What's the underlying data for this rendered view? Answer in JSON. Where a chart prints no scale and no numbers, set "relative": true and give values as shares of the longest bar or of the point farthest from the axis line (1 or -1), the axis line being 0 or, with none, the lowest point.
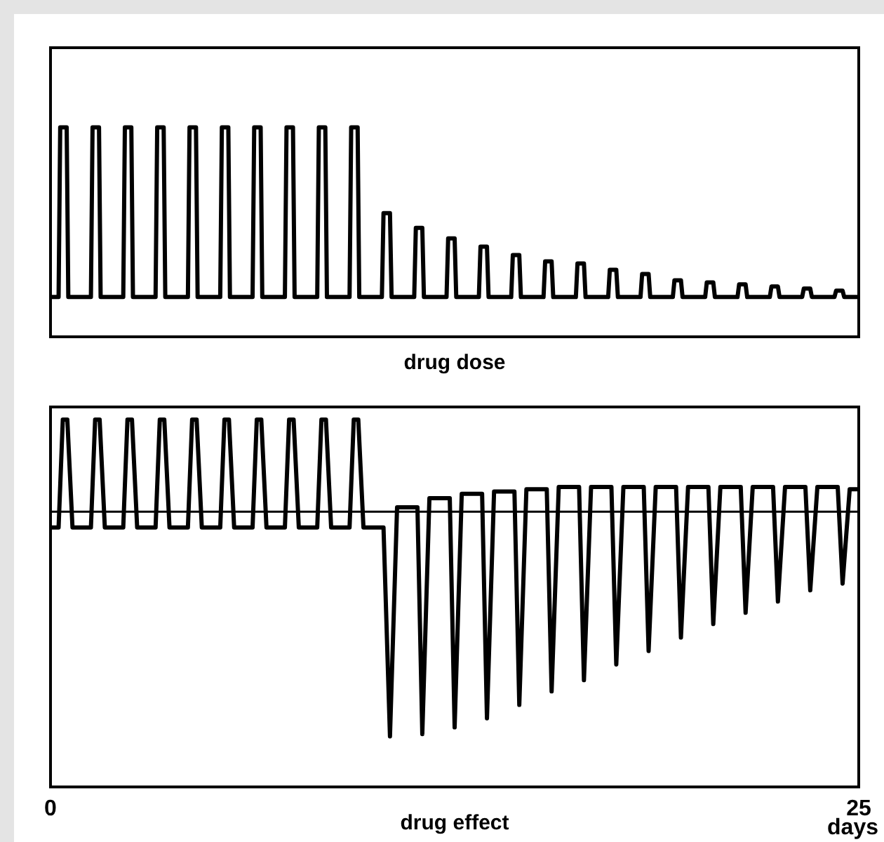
{
  "chart_data": [
    {
      "type": "line",
      "xlabel": "drug dose",
      "xlim": [
        0,
        25
      ],
      "tick_labels": false,
      "relative": true,
      "series": [
        {
          "color": "#000000",
          "x": [
            0,
            0.25,
            0.3,
            0.5,
            0.55,
            1.25,
            1.3,
            1.5,
            1.55,
            2.25,
            2.3,
            2.5,
            2.55,
            3.25,
            3.3,
            3.5,
            3.55,
            4.25,
            4.3,
            4.5,
            4.55,
            5.25,
            5.3,
            5.5,
            5.55,
            6.25,
            6.3,
            6.5,
            6.55,
            7.25,
            7.3,
            7.5,
            7.55,
            8.25,
            8.3,
            8.5,
            8.55,
            9.25,
            9.3,
            9.5,
            9.55,
            10.25,
            10.3,
            10.5,
            10.55,
            11.25,
            11.3,
            11.5,
            11.55,
            12.25,
            12.3,
            12.5,
            12.55,
            13.25,
            13.3,
            13.5,
            13.55,
            14.25,
            14.3,
            14.5,
            14.55,
            15.25,
            15.3,
            15.5,
            15.55,
            16.25,
            16.3,
            16.5,
            16.55,
            17.25,
            17.3,
            17.5,
            17.55,
            18.25,
            18.3,
            18.5,
            18.55,
            19.25,
            19.3,
            19.5,
            19.55,
            20.25,
            20.3,
            20.5,
            20.55,
            21.25,
            21.3,
            21.5,
            21.55,
            22.25,
            22.3,
            22.5,
            22.55,
            23.25,
            23.3,
            23.5,
            23.55,
            24.25,
            24.3,
            24.5,
            24.55,
            25
          ],
          "values": [
            0.19,
            0.19,
            1,
            1,
            0.19,
            0.19,
            1,
            1,
            0.19,
            0.19,
            1,
            1,
            0.19,
            0.19,
            1,
            1,
            0.19,
            0.19,
            1,
            1,
            0.19,
            0.19,
            1,
            1,
            0.19,
            0.19,
            1,
            1,
            0.19,
            0.19,
            1,
            1,
            0.19,
            0.19,
            1,
            1,
            0.19,
            0.19,
            1,
            1,
            0.19,
            0.19,
            0.59,
            0.59,
            0.19,
            0.19,
            0.52,
            0.52,
            0.19,
            0.19,
            0.47,
            0.47,
            0.19,
            0.19,
            0.43,
            0.43,
            0.19,
            0.19,
            0.39,
            0.39,
            0.19,
            0.19,
            0.36,
            0.36,
            0.19,
            0.19,
            0.35,
            0.35,
            0.19,
            0.19,
            0.32,
            0.32,
            0.19,
            0.19,
            0.3,
            0.3,
            0.19,
            0.19,
            0.27,
            0.27,
            0.19,
            0.19,
            0.26,
            0.26,
            0.19,
            0.19,
            0.25,
            0.25,
            0.19,
            0.19,
            0.24,
            0.24,
            0.19,
            0.19,
            0.23,
            0.23,
            0.19,
            0.19,
            0.22,
            0.22,
            0.19,
            0.19
          ]
        }
      ]
    },
    {
      "type": "line",
      "xlabel": "drug effect",
      "xlim": [
        0,
        25
      ],
      "xticks": [
        0,
        25
      ],
      "tick_labels": "x",
      "relative": true,
      "ref_lines": [
        {
          "axis": "y",
          "value": 0,
          "color": "#000000"
        }
      ],
      "annotations": [
        "days"
      ],
      "series": [
        {
          "color": "#000000",
          "x": [
            0,
            0.25,
            0.38,
            0.52,
            0.68,
            1.25,
            1.38,
            1.52,
            1.68,
            2.25,
            2.38,
            2.52,
            2.68,
            3.25,
            3.38,
            3.52,
            3.68,
            4.25,
            4.38,
            4.52,
            4.68,
            5.25,
            5.38,
            5.52,
            5.68,
            6.25,
            6.38,
            6.52,
            6.68,
            7.25,
            7.38,
            7.52,
            7.68,
            8.25,
            8.38,
            8.52,
            8.68,
            9.25,
            9.38,
            9.52,
            9.68,
            10.3,
            10.5,
            10.72,
            11.35,
            11.5,
            11.72,
            12.35,
            12.5,
            12.72,
            13.35,
            13.5,
            13.72,
            14.35,
            14.5,
            14.72,
            15.35,
            15.5,
            15.72,
            16.35,
            16.5,
            16.72,
            17.35,
            17.5,
            17.72,
            18.35,
            18.5,
            18.72,
            19.35,
            19.5,
            19.72,
            20.35,
            20.5,
            20.72,
            21.35,
            21.5,
            21.72,
            22.35,
            22.5,
            22.72,
            23.35,
            23.5,
            23.72,
            24.35,
            24.5,
            24.72,
            25
          ],
          "values": [
            -0.07,
            -0.07,
            0.41,
            0.41,
            -0.07,
            -0.07,
            0.41,
            0.41,
            -0.07,
            -0.07,
            0.41,
            0.41,
            -0.07,
            -0.07,
            0.41,
            0.41,
            -0.07,
            -0.07,
            0.41,
            0.41,
            -0.07,
            -0.07,
            0.41,
            0.41,
            -0.07,
            -0.07,
            0.41,
            0.41,
            -0.07,
            -0.07,
            0.41,
            0.41,
            -0.07,
            -0.07,
            0.41,
            0.41,
            -0.07,
            -0.07,
            0.41,
            0.41,
            -0.07,
            -0.07,
            -1,
            0.02,
            0.02,
            -0.99,
            0.06,
            0.06,
            -0.96,
            0.08,
            0.08,
            -0.92,
            0.09,
            0.09,
            -0.86,
            0.1,
            0.1,
            -0.8,
            0.11,
            0.11,
            -0.75,
            0.11,
            0.11,
            -0.68,
            0.11,
            0.11,
            -0.62,
            0.11,
            0.11,
            -0.56,
            0.11,
            0.11,
            -0.5,
            0.11,
            0.11,
            -0.45,
            0.11,
            0.11,
            -0.4,
            0.11,
            0.11,
            -0.35,
            0.11,
            0.11,
            -0.32,
            0.1,
            0.1
          ]
        }
      ]
    }
  ]
}
